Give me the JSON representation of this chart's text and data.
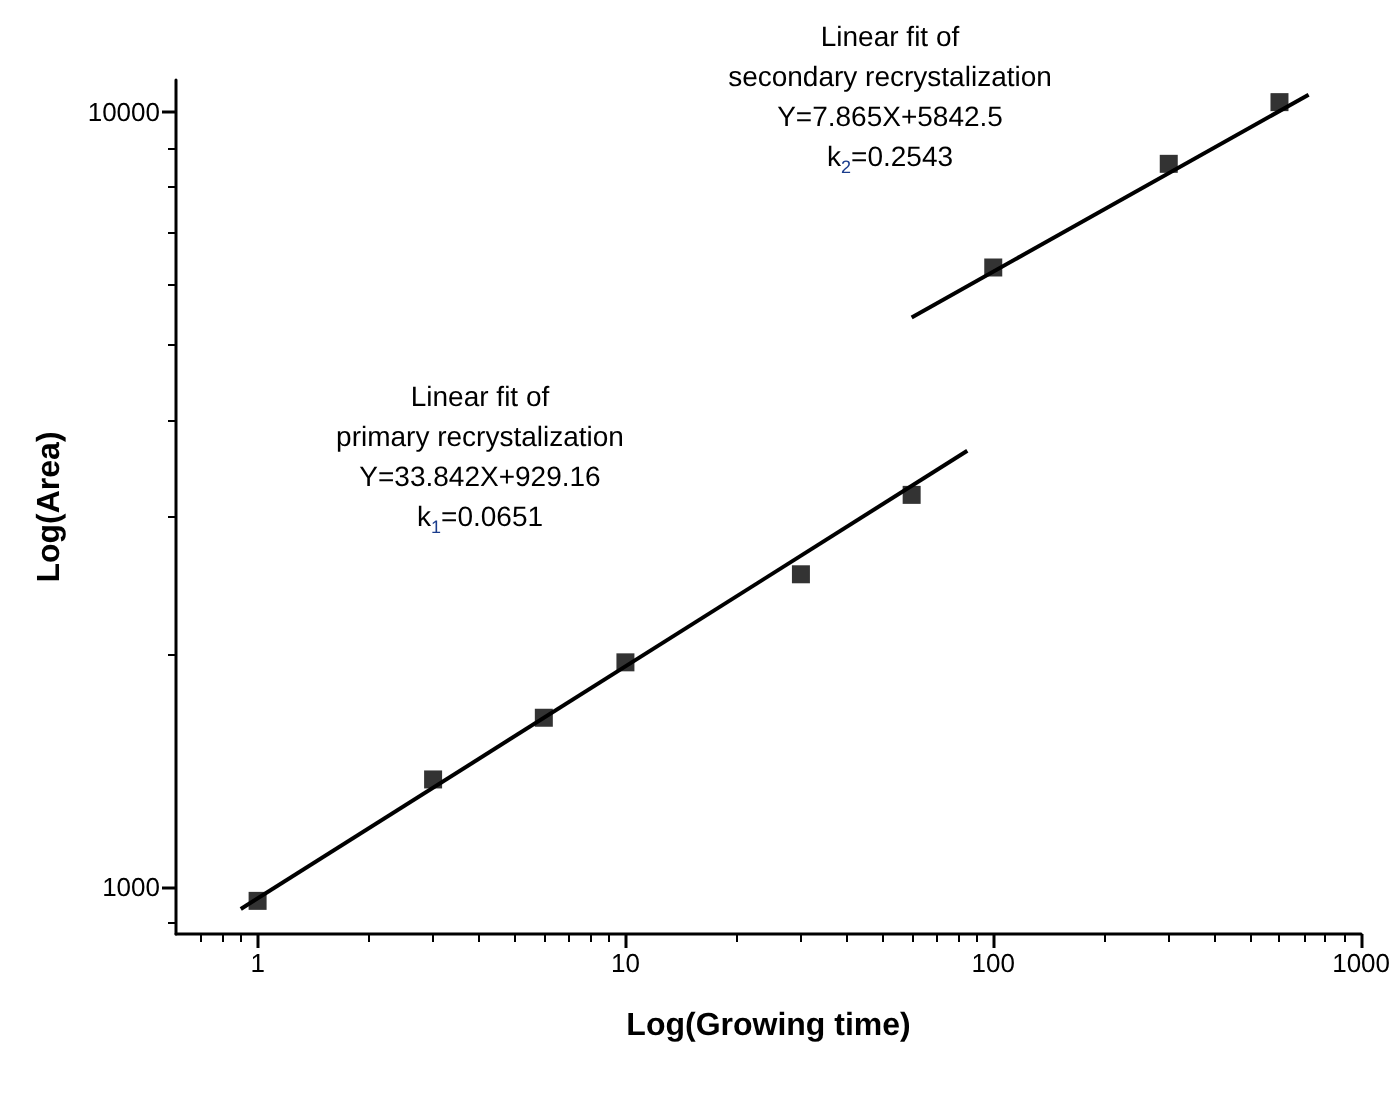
{
  "chart_data": {
    "type": "scatter",
    "xlabel": "Log(Growing time)",
    "ylabel": "Log(Area)",
    "log": "xy",
    "xlim": [
      0.6,
      1000
    ],
    "ylim": [
      870,
      11000
    ],
    "xticks": [
      1,
      10,
      100,
      1000
    ],
    "yticks": [
      1000,
      10000
    ],
    "grid": false,
    "marker": "square",
    "annotations": [
      "Linear fit of\nprimary recrystalization\nY=33.842X+929.16\nk$_{1}$=0.0651",
      "Linear fit of\nsecondary recrystalization\nY=7.865X+5842.5\nk$_{2}$=0.2543"
    ],
    "series": [
      {
        "color": "#000000",
        "x": [
          1,
          3,
          6,
          10,
          30,
          60,
          100,
          300,
          600
        ],
        "values": [
          960,
          1377,
          1654,
          1950,
          2533,
          3207,
          6302,
          8575,
          10300
        ]
      },
      {
        "type": "line",
        "color": "#000000",
        "marker": "none",
        "line_style": "solid",
        "x": [
          0.9,
          85
        ],
        "values": [
          937,
          3656
        ]
      },
      {
        "type": "line",
        "color": "#000000",
        "marker": "none",
        "line_style": "solid",
        "x": [
          60,
          720
        ],
        "values": [
          5433,
          10530
        ]
      }
    ]
  }
}
